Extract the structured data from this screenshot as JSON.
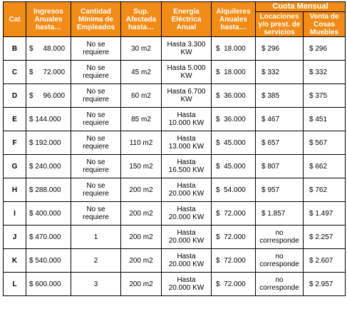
{
  "headers": {
    "cat": "Cat",
    "ingresos": [
      "Ingresos",
      "Anuales",
      "hasta…"
    ],
    "empleados": [
      "Cantidad",
      "Mínima de",
      "Empleados"
    ],
    "superficie": [
      "Sup.",
      "Afectada",
      "hasta…"
    ],
    "energia": [
      "Energía",
      "Eléctrica",
      "Anual"
    ],
    "alquileres": [
      "Alquileres",
      "Anuales",
      "hasta…"
    ],
    "cuota": "Cuota Mensual",
    "locaciones": [
      "Locaciones",
      "y/o prest. de",
      "servicios"
    ],
    "venta": [
      "Venta de",
      "Cosas",
      "Muebles"
    ]
  },
  "rows": [
    {
      "cat": "B",
      "ingresos": "$     48.000",
      "empleados": [
        "No se",
        "requiere"
      ],
      "superficie": "30 m2",
      "energia": [
        "Hasta 3.300",
        "KW"
      ],
      "alquileres": "$  18.000",
      "locaciones": [
        "$ 296"
      ],
      "venta": "$ 296"
    },
    {
      "cat": "C",
      "ingresos": "$     72.000",
      "empleados": [
        "No se",
        "requiere"
      ],
      "superficie": "45 m2",
      "energia": [
        "Hasta 5.000",
        "KW"
      ],
      "alquileres": "$  18.000",
      "locaciones": [
        "$ 332"
      ],
      "venta": "$ 332"
    },
    {
      "cat": "D",
      "ingresos": "$     96.000",
      "empleados": [
        "No se",
        "requiere"
      ],
      "superficie": "60 m2",
      "energia": [
        "Hasta 6.700",
        "KW"
      ],
      "alquileres": "$  36.000",
      "locaciones": [
        "$ 385"
      ],
      "venta": "$ 375"
    },
    {
      "cat": "E",
      "ingresos": "$ 144.000",
      "empleados": [
        "No se",
        "requiere"
      ],
      "superficie": "85 m2",
      "energia": [
        "Hasta",
        "10.000 KW"
      ],
      "alquileres": "$  36.000",
      "locaciones": [
        "$ 467"
      ],
      "venta": "$ 451"
    },
    {
      "cat": "F",
      "ingresos": "$ 192.000",
      "empleados": [
        "No se",
        "requiere"
      ],
      "superficie": "110 m2",
      "energia": [
        "Hasta",
        "13.000 KW"
      ],
      "alquileres": "$  45.000",
      "locaciones": [
        "$ 657"
      ],
      "venta": "$ 567"
    },
    {
      "cat": "G",
      "ingresos": "$ 240.000",
      "empleados": [
        "No se",
        "requiere"
      ],
      "superficie": "150 m2",
      "energia": [
        "Hasta",
        "16.500 KW"
      ],
      "alquileres": "$  45.000",
      "locaciones": [
        "$ 807"
      ],
      "venta": "$ 662"
    },
    {
      "cat": "H",
      "ingresos": "$ 288.000",
      "empleados": [
        "No se",
        "requiere"
      ],
      "superficie": "200 m2",
      "energia": [
        "Hasta",
        "20.000 KW"
      ],
      "alquileres": "$  54.000",
      "locaciones": [
        "$ 957"
      ],
      "venta": "$ 762"
    },
    {
      "cat": "I",
      "ingresos": "$ 400.000",
      "empleados": [
        "No se",
        "requiere"
      ],
      "superficie": "200 m2",
      "energia": [
        "Hasta",
        "20.000 KW"
      ],
      "alquileres": "$  72.000",
      "locaciones": [
        "$ 1.857"
      ],
      "venta": "$ 1.497"
    },
    {
      "cat": "J",
      "ingresos": "$ 470.000",
      "empleados": [
        "1"
      ],
      "superficie": "200 m2",
      "energia": [
        "Hasta",
        "20.000 KW"
      ],
      "alquileres": "$  72.000",
      "locaciones": [
        "no",
        "corresponde"
      ],
      "venta": "$ 2.257"
    },
    {
      "cat": "K",
      "ingresos": "$ 540.000",
      "empleados": [
        "2"
      ],
      "superficie": "200 m2",
      "energia": [
        "Hasta",
        "20.000 KW"
      ],
      "alquileres": "$  72.000",
      "locaciones": [
        "no",
        "corresponde"
      ],
      "venta": "$ 2.607"
    },
    {
      "cat": "L",
      "ingresos": "$ 600.000",
      "empleados": [
        "3"
      ],
      "superficie": "200 m2",
      "energia": [
        "Hasta",
        "20.000 KW"
      ],
      "alquileres": "$  72.000",
      "locaciones": [
        "no",
        "corresponde"
      ],
      "venta": "$ 2.957"
    }
  ],
  "colors": {
    "header_bg": "#f28c18",
    "header_text": "#ffffff",
    "border": "#000000"
  }
}
